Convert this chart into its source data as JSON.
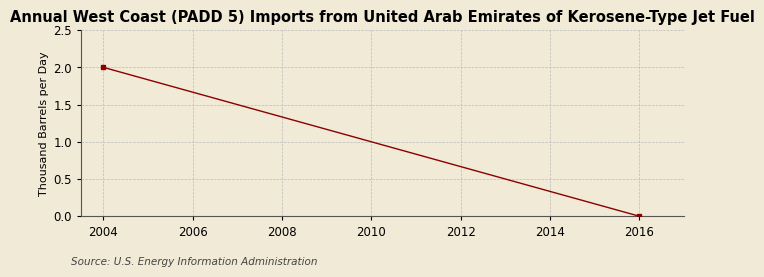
{
  "title": "Annual West Coast (PADD 5) Imports from United Arab Emirates of Kerosene-Type Jet Fuel",
  "ylabel": "Thousand Barrels per Day",
  "source_text": "Source: U.S. Energy Information Administration",
  "x_data": [
    2004,
    2016
  ],
  "y_data": [
    2.0,
    0.0
  ],
  "xlim": [
    2003.5,
    2017
  ],
  "ylim": [
    0.0,
    2.5
  ],
  "xticks": [
    2004,
    2006,
    2008,
    2010,
    2012,
    2014,
    2016
  ],
  "yticks": [
    0.0,
    0.5,
    1.0,
    1.5,
    2.0,
    2.5
  ],
  "background_color": "#f0ead6",
  "plot_bg_color": "#f0ead6",
  "grid_color": "#bbbbbb",
  "line_color": "#8b0000",
  "marker_color": "#8b0000",
  "title_fontsize": 10.5,
  "label_fontsize": 8,
  "tick_fontsize": 8.5,
  "source_fontsize": 7.5
}
